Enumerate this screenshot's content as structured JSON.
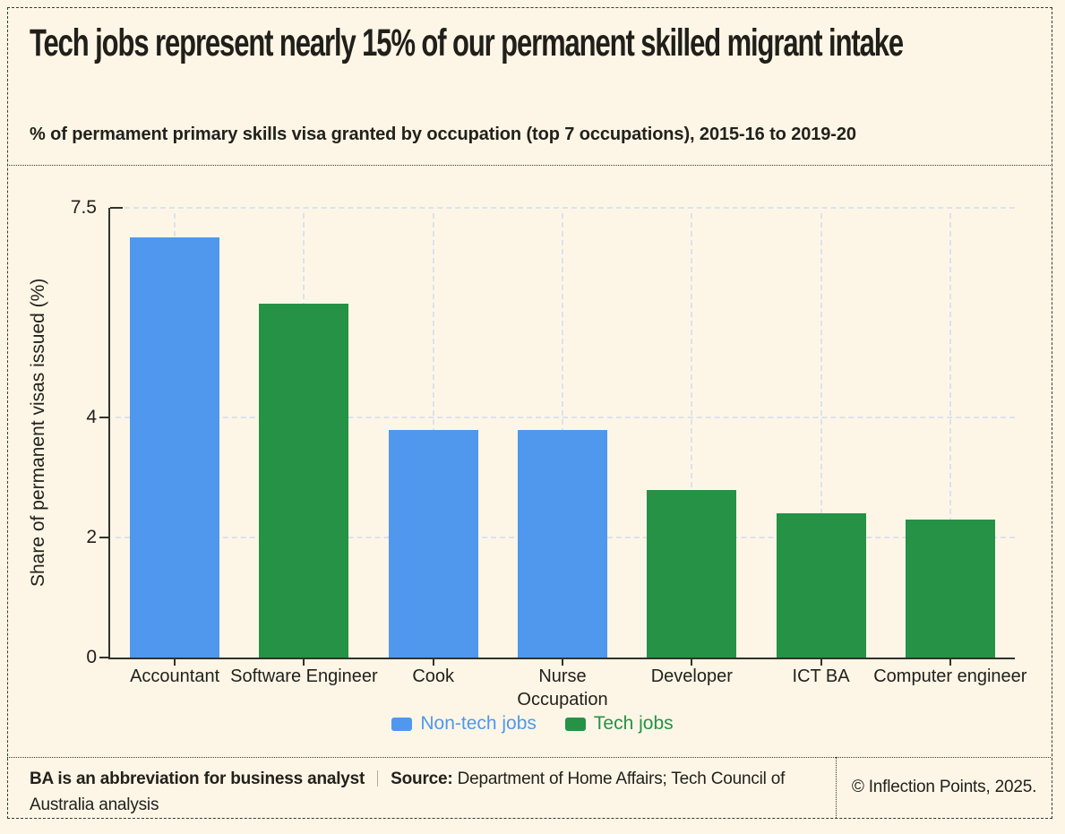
{
  "header": {
    "title": "Tech jobs represent nearly 15% of our permanent skilled migrant intake",
    "subtitle": "% of permament primary skills visa granted by occupation (top 7 occupations), 2015-16 to 2019-20"
  },
  "chart_data": {
    "type": "bar",
    "categories": [
      "Accountant",
      "Software Engineer",
      "Cook",
      "Nurse",
      "Developer",
      "ICT BA",
      "Computer engineer"
    ],
    "values": [
      7.0,
      5.9,
      3.8,
      3.8,
      2.8,
      2.4,
      2.3
    ],
    "groups": [
      "Non-tech jobs",
      "Tech jobs",
      "Non-tech jobs",
      "Non-tech jobs",
      "Tech jobs",
      "Tech jobs",
      "Tech jobs"
    ],
    "series": [
      {
        "name": "Non-tech jobs",
        "color": "#4f98ed"
      },
      {
        "name": "Tech jobs",
        "color": "#259245"
      }
    ],
    "title": "",
    "xlabel": "Occupation",
    "ylabel": "Share of permanent visas issued (%)",
    "ylim": [
      0,
      7.5
    ],
    "yticks": [
      0,
      2,
      4,
      7.5
    ],
    "grid": "dashed, horizontal and vertical",
    "legend_position": "bottom-center"
  },
  "footer": {
    "note": "BA is an abbreviation for business analyst",
    "source_label": "Source:",
    "source_text": "Department of Home Affairs; Tech Council of Australia analysis",
    "copyright": "© Inflection Points, 2025."
  },
  "colors": {
    "background": "#fdf6e7",
    "non_tech_blue": "#4f98ed",
    "tech_green": "#259245",
    "gridline": "#dde1ee",
    "axis": "#33322a",
    "text": "#22211b"
  }
}
